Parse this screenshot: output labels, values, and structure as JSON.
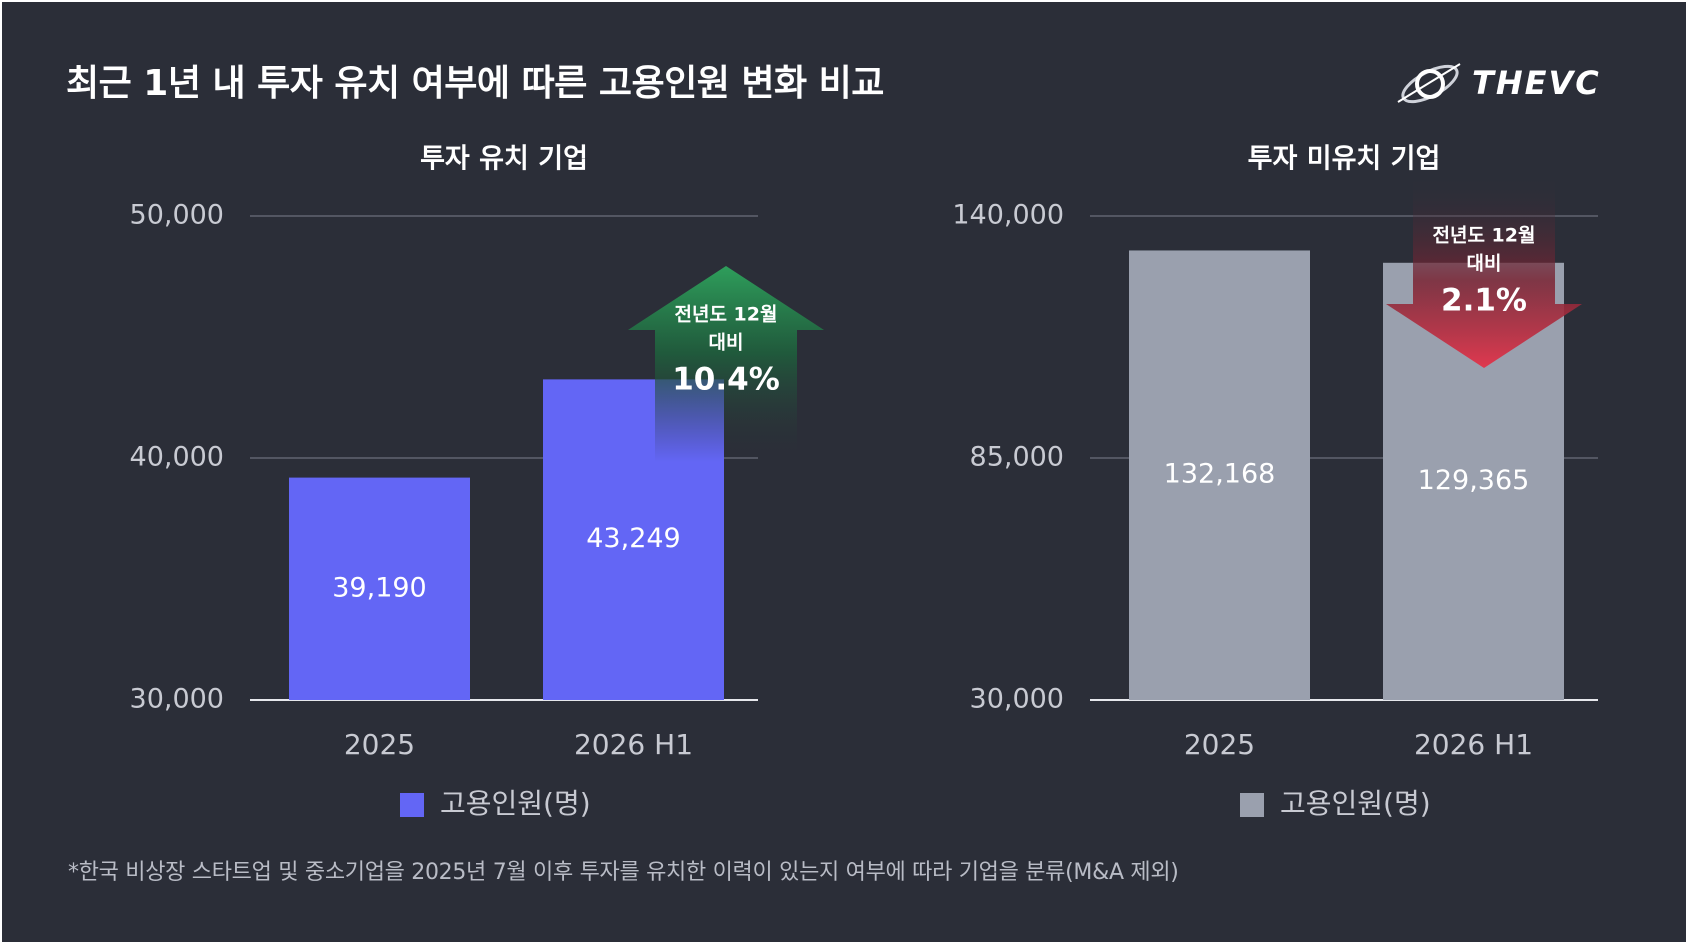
{
  "title": "최근 1년 내 투자 유치 여부에 따른 고용인원 변화 비교",
  "brand": {
    "logo_text": "THEVC"
  },
  "footnote": "*한국 비상장 스타트업 및 중소기업을 2025년 7월 이후 투자를 유치한 이력이 있는지 여부에 따라 기업을 분류(M&A 제외)",
  "colors": {
    "background": "#2b2e38",
    "invested": "#6366f5",
    "not_invested": "#9aa0ae",
    "up": "#2e9e5b",
    "down": "#e0394f"
  },
  "chart_data": [
    {
      "type": "bar",
      "title": "투자 유치 기업",
      "categories": [
        "2025",
        "2026 H1"
      ],
      "series": [
        {
          "name": "고용인원(명)",
          "values": [
            39190,
            43249
          ],
          "color": "#6366f5"
        }
      ],
      "data_labels": [
        "39,190",
        "43,249"
      ],
      "ylim": [
        30000,
        50000
      ],
      "yticks": [
        30000,
        40000,
        50000
      ],
      "ytick_labels": [
        "30,000",
        "40,000",
        "50,000"
      ],
      "grid": true,
      "legend": {
        "position": "bottom",
        "labels": [
          "고용인원(명)"
        ]
      },
      "annotation": {
        "direction": "up",
        "line1": "전년도 12월",
        "line2": "대비",
        "value": "10.4%",
        "color": "#2e9e5b"
      }
    },
    {
      "type": "bar",
      "title": "투자 미유치 기업",
      "categories": [
        "2025",
        "2026 H1"
      ],
      "series": [
        {
          "name": "고용인원(명)",
          "values": [
            132168,
            129365
          ],
          "color": "#9aa0ae"
        }
      ],
      "data_labels": [
        "132,168",
        "129,365"
      ],
      "ylim": [
        30000,
        140000
      ],
      "yticks": [
        30000,
        85000,
        140000
      ],
      "ytick_labels": [
        "30,000",
        "85,000",
        "140,000"
      ],
      "grid": true,
      "legend": {
        "position": "bottom",
        "labels": [
          "고용인원(명)"
        ]
      },
      "annotation": {
        "direction": "down",
        "line1": "전년도 12월",
        "line2": "대비",
        "value": "2.1%",
        "color": "#e0394f"
      }
    }
  ]
}
